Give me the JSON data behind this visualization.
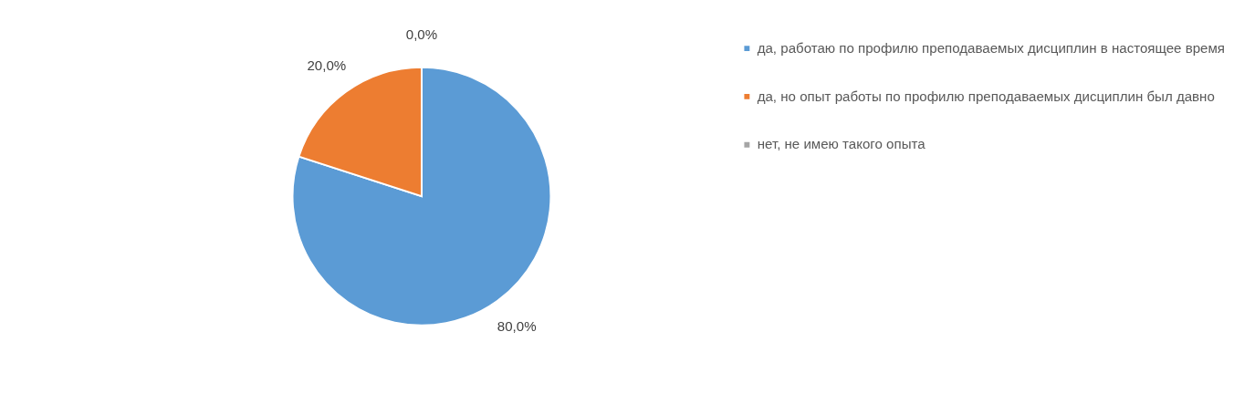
{
  "chart_data": {
    "type": "pie",
    "categories": [
      "да, работаю по профилю преподаваемых дисциплин в настоящее время",
      "да, но опыт работы по профилю преподаваемых дисциплин был давно",
      "нет, не имею такого опыта"
    ],
    "values": [
      80,
      20,
      0
    ],
    "colors": [
      "#5b9bd5",
      "#ed7d31",
      "#a5a5a5"
    ],
    "value_labels": [
      "80,0%",
      "20,0%",
      "0,0%"
    ],
    "legend": "right"
  }
}
